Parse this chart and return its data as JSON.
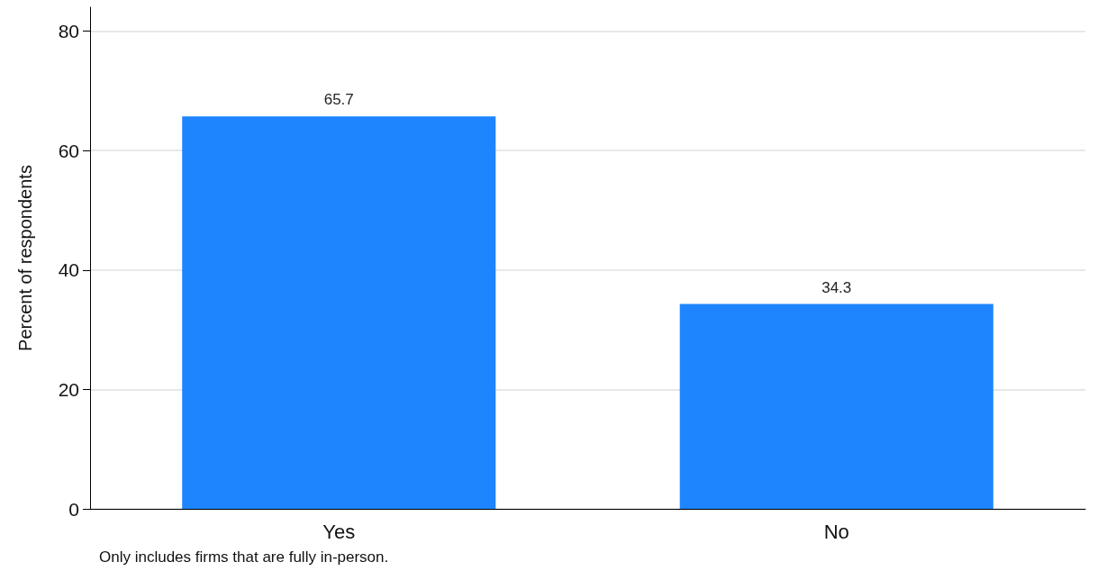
{
  "chart_data": {
    "type": "bar",
    "ylabel": "Percent of respondents",
    "categories": [
      "Yes",
      "No"
    ],
    "values": [
      65.7,
      34.3
    ],
    "color": "#1e85ff",
    "ylim": [
      0,
      84
    ],
    "yticks": [
      0,
      20,
      40,
      60,
      80
    ],
    "grid": "y",
    "data_labels": true,
    "annotations": [
      "Only includes firms that are fully in-person."
    ]
  }
}
